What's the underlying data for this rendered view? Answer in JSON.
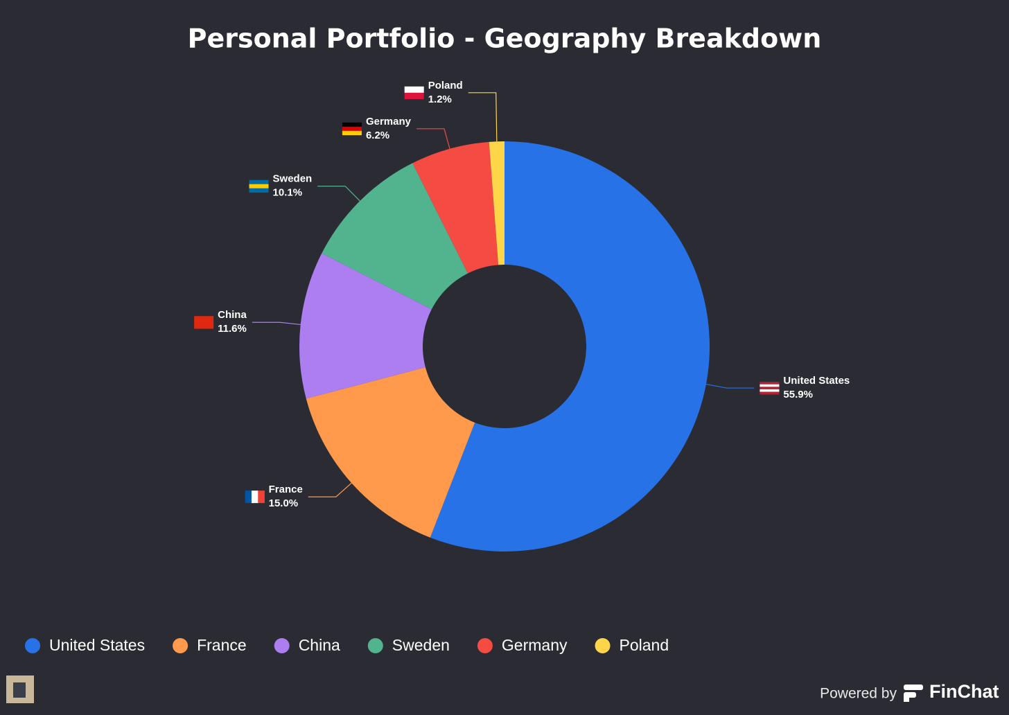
{
  "chart_data": {
    "type": "donut",
    "title": "Personal Portfolio - Geography Breakdown",
    "categories": [
      "United States",
      "France",
      "China",
      "Sweden",
      "Germany",
      "Poland"
    ],
    "values": [
      55.9,
      15.0,
      11.6,
      10.1,
      6.2,
      1.2
    ],
    "value_labels": [
      "55.9%",
      "15.0%",
      "11.6%",
      "10.1%",
      "6.2%",
      "1.2%"
    ],
    "colors": [
      "#2872e8",
      "#ff9a4c",
      "#ac7ef0",
      "#52b38f",
      "#f44b42",
      "#ffd54a"
    ],
    "legend": "bottom"
  },
  "footer": {
    "powered_by": "Powered by",
    "brand": "FinChat"
  }
}
